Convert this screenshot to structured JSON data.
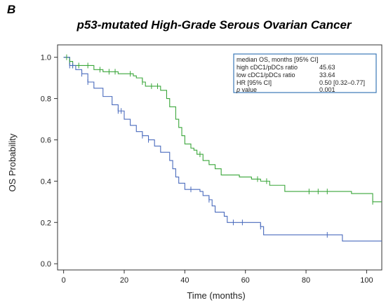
{
  "panel_label": "B",
  "chart_data": {
    "type": "line",
    "title": "p53-mutated High-Grade Serous Ovarian Cancer",
    "xlabel": "Time (months)",
    "ylabel": "OS Probability",
    "xlim": [
      -2,
      105
    ],
    "ylim": [
      -0.03,
      1.06
    ],
    "xticks": [
      0,
      20,
      40,
      60,
      80,
      100
    ],
    "yticks": [
      0.0,
      0.2,
      0.4,
      0.6,
      0.8,
      1.0
    ],
    "xtick_labels": [
      "0",
      "20",
      "40",
      "60",
      "80",
      "100"
    ],
    "ytick_labels": [
      "0.0",
      "0.2",
      "0.4",
      "0.6",
      "0.8",
      "1.0"
    ],
    "grid": false,
    "legend_position": "top-right",
    "series": [
      {
        "name": "high cDC1/pDCs ratio",
        "color": "#3aa63a",
        "steps": [
          [
            0,
            1.0
          ],
          [
            2,
            0.98
          ],
          [
            3,
            0.96
          ],
          [
            10,
            0.94
          ],
          [
            13,
            0.93
          ],
          [
            18,
            0.92
          ],
          [
            23,
            0.91
          ],
          [
            24,
            0.9
          ],
          [
            26,
            0.88
          ],
          [
            27,
            0.86
          ],
          [
            32,
            0.84
          ],
          [
            34,
            0.8
          ],
          [
            35,
            0.76
          ],
          [
            37,
            0.7
          ],
          [
            38,
            0.66
          ],
          [
            39,
            0.62
          ],
          [
            40,
            0.58
          ],
          [
            42,
            0.56
          ],
          [
            43,
            0.55
          ],
          [
            44,
            0.53
          ],
          [
            46,
            0.5
          ],
          [
            48,
            0.48
          ],
          [
            50,
            0.46
          ],
          [
            52,
            0.43
          ],
          [
            58,
            0.42
          ],
          [
            62,
            0.41
          ],
          [
            65,
            0.4
          ],
          [
            68,
            0.38
          ],
          [
            73,
            0.35
          ],
          [
            95,
            0.34
          ],
          [
            102,
            0.3
          ],
          [
            105,
            0.3
          ]
        ],
        "censor_x": [
          1,
          2,
          3,
          5,
          8,
          12,
          15,
          17,
          22,
          26,
          29,
          31,
          45,
          64,
          67,
          81,
          84,
          87,
          102
        ]
      },
      {
        "name": "low cDC1/pDCs ratio",
        "color": "#4a6bbd",
        "steps": [
          [
            0,
            1.0
          ],
          [
            2,
            0.96
          ],
          [
            4,
            0.94
          ],
          [
            6,
            0.92
          ],
          [
            8,
            0.88
          ],
          [
            10,
            0.85
          ],
          [
            13,
            0.81
          ],
          [
            16,
            0.77
          ],
          [
            18,
            0.74
          ],
          [
            20,
            0.7
          ],
          [
            22,
            0.67
          ],
          [
            24,
            0.64
          ],
          [
            26,
            0.62
          ],
          [
            28,
            0.6
          ],
          [
            30,
            0.57
          ],
          [
            32,
            0.54
          ],
          [
            35,
            0.5
          ],
          [
            36,
            0.46
          ],
          [
            37,
            0.42
          ],
          [
            38,
            0.39
          ],
          [
            40,
            0.36
          ],
          [
            45,
            0.35
          ],
          [
            46,
            0.33
          ],
          [
            48,
            0.31
          ],
          [
            49,
            0.28
          ],
          [
            50,
            0.25
          ],
          [
            53,
            0.23
          ],
          [
            54,
            0.2
          ],
          [
            65,
            0.18
          ],
          [
            66,
            0.14
          ],
          [
            92,
            0.11
          ],
          [
            105,
            0.11
          ]
        ],
        "censor_x": [
          2,
          3,
          6,
          8,
          18,
          19,
          26,
          28,
          42,
          48,
          56,
          59,
          65,
          87
        ]
      }
    ],
    "legend_box": {
      "header": "median OS, months [95% CI]",
      "rows": [
        {
          "label": "high cDC1/pDCs ratio",
          "value": "45.63",
          "color": "#3aa63a"
        },
        {
          "label": "low cDC1/pDCs ratio",
          "value": "33.64",
          "color": "#4a6bbd"
        },
        {
          "label": "HR [95% CI]",
          "value": "0.50 [0.32–0.77]",
          "color": "#222222"
        },
        {
          "label_italic": "p",
          "label_rest": " value",
          "value": "0.001",
          "color": "#222222"
        }
      ],
      "border_color": "#3b79b7"
    }
  }
}
